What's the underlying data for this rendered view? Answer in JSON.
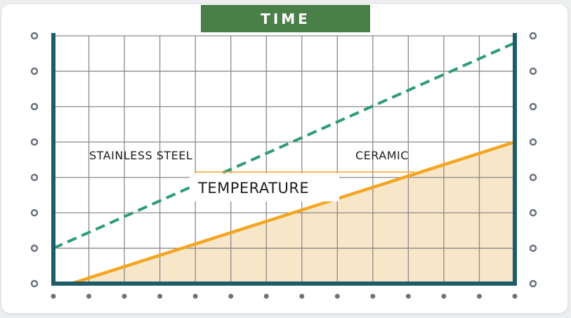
{
  "colors": {
    "axis": "#1d5d6a",
    "grid": "#8a8a8a",
    "dots": "#6b7280",
    "steel_line": "#2e9b7c",
    "ceramic_line": "#f4a623",
    "ceramic_fill": "#f8e6c8",
    "title_bg": "#4a7f47"
  },
  "chart_data": {
    "type": "line",
    "title": "TIME",
    "xlabel": "",
    "ylabel": "",
    "xlim": [
      0,
      13
    ],
    "ylim": [
      0,
      7
    ],
    "grid": true,
    "annotations": [
      "STAINLESS STEEL",
      "CERAMIC",
      "TEMPERATURE"
    ],
    "series": [
      {
        "name": "STAINLESS STEEL",
        "style": "dashed",
        "x": [
          0,
          13
        ],
        "y": [
          1,
          6.8
        ]
      },
      {
        "name": "CERAMIC",
        "style": "solid-filled",
        "x": [
          0.5,
          13
        ],
        "y": [
          0,
          4
        ]
      }
    ]
  }
}
